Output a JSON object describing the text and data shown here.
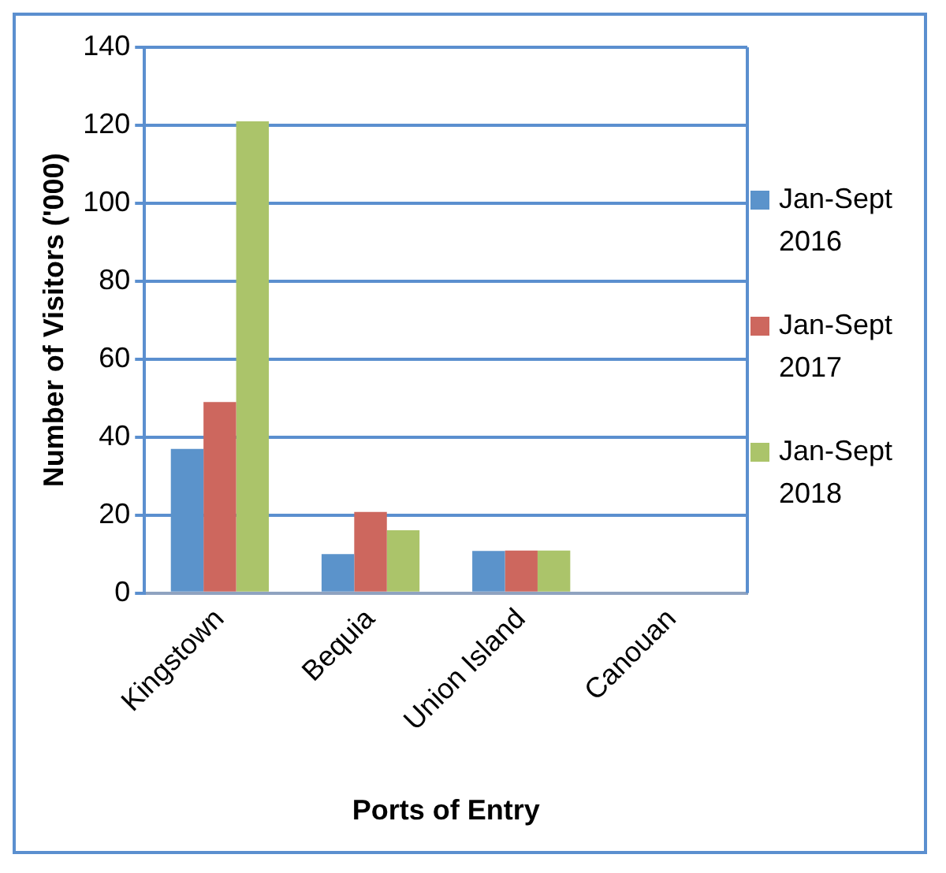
{
  "chart_data": {
    "type": "bar",
    "xlabel": "Ports of Entry",
    "ylabel": "Number of Visitors ('000)",
    "categories": [
      "Kingstown",
      "Bequia",
      "Union Island",
      "Canouan"
    ],
    "series": [
      {
        "name": "Jan-Sept 2016",
        "color": "#5b93cb",
        "values": [
          37,
          10,
          10.8,
          0
        ]
      },
      {
        "name": "Jan-Sept 2017",
        "color": "#cd675e",
        "values": [
          49,
          20.8,
          10.9,
          0
        ]
      },
      {
        "name": "Jan-Sept 2018",
        "color": "#abc46a",
        "values": [
          121,
          16.1,
          10.9,
          0
        ]
      }
    ],
    "ylim": [
      0,
      140
    ],
    "yticks": [
      0,
      20,
      40,
      60,
      80,
      100,
      120,
      140
    ],
    "grid": "y",
    "legend": "right"
  }
}
